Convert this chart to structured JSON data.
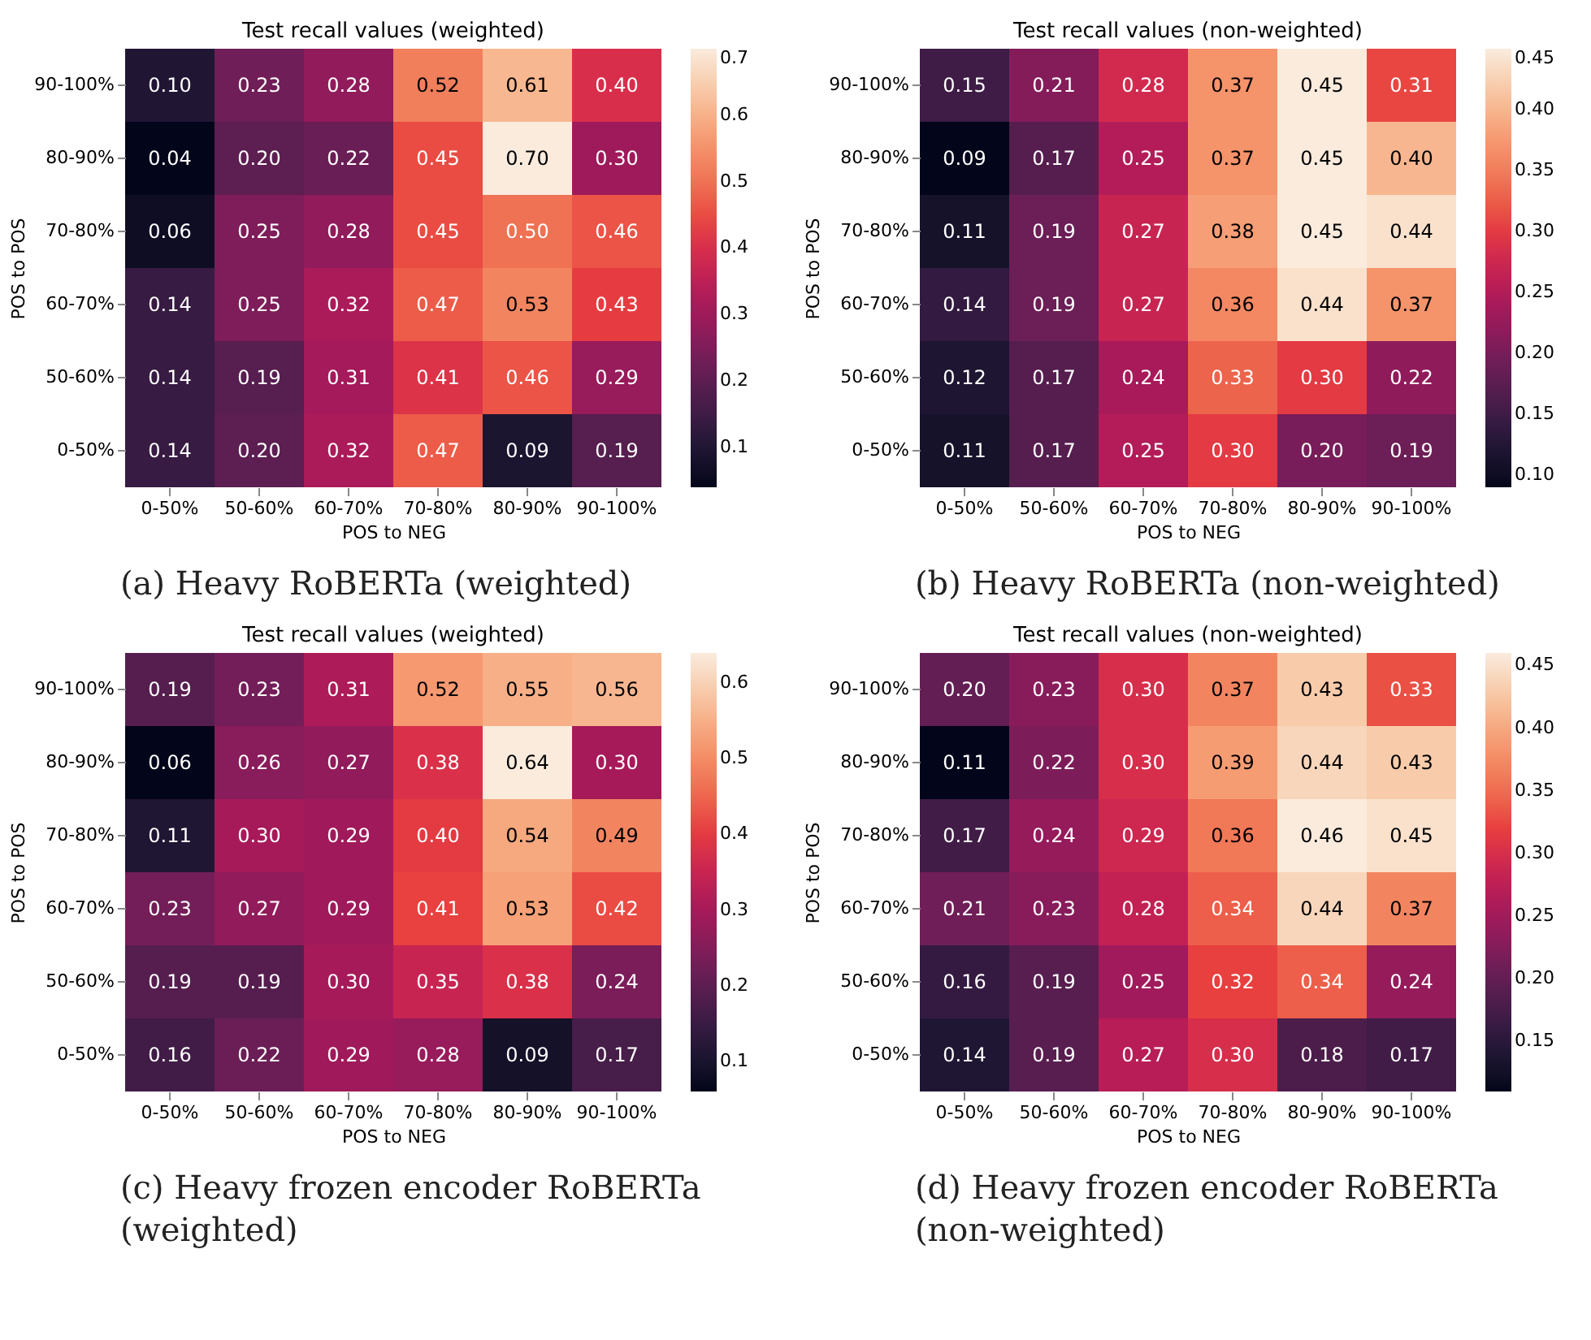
{
  "chart_data": [
    {
      "type": "heatmap",
      "title": "Test recall values (weighted)",
      "xlabel": "POS to NEG",
      "ylabel": "POS to POS",
      "categories": [
        "0-50%",
        "50-60%",
        "60-70%",
        "70-80%",
        "80-90%",
        "90-100%"
      ],
      "y_categories": [
        "90-100%",
        "80-90%",
        "70-80%",
        "60-70%",
        "50-60%",
        "0-50%"
      ],
      "cells": [
        [
          0.1,
          0.23,
          0.28,
          0.52,
          0.61,
          0.4
        ],
        [
          0.04,
          0.2,
          0.22,
          0.45,
          0.7,
          0.3
        ],
        [
          0.06,
          0.25,
          0.28,
          0.45,
          0.5,
          0.46
        ],
        [
          0.14,
          0.25,
          0.32,
          0.47,
          0.53,
          0.43
        ],
        [
          0.14,
          0.19,
          0.31,
          0.41,
          0.46,
          0.29
        ],
        [
          0.14,
          0.2,
          0.32,
          0.47,
          0.09,
          0.19
        ]
      ],
      "cell_labels": [
        [
          "0.10",
          "0.23",
          "0.28",
          "0.52",
          "0.61",
          "0.40"
        ],
        [
          "0.04",
          "0.20",
          "0.22",
          "0.45",
          "0.70",
          "0.30"
        ],
        [
          "0.06",
          "0.25",
          "0.28",
          "0.45",
          "0.50",
          "0.46"
        ],
        [
          "0.14",
          "0.25",
          "0.32",
          "0.47",
          "0.53",
          "0.43"
        ],
        [
          "0.14",
          "0.19",
          "0.31",
          "0.41",
          "0.46",
          "0.29"
        ],
        [
          "0.14",
          "0.20",
          "0.32",
          "0.47",
          "0.09",
          "0.19"
        ]
      ],
      "clim": [
        0.04,
        0.7
      ],
      "cticks": [
        0.1,
        0.2,
        0.3,
        0.4,
        0.5,
        0.6,
        0.7
      ],
      "data_labels": true,
      "annotations": [
        "(a) Heavy RoBERTa (weighted)"
      ]
    },
    {
      "type": "heatmap",
      "title": "Test recall values (non-weighted)",
      "xlabel": "POS to NEG",
      "ylabel": "POS to POS",
      "categories": [
        "0-50%",
        "50-60%",
        "60-70%",
        "70-80%",
        "80-90%",
        "90-100%"
      ],
      "y_categories": [
        "90-100%",
        "80-90%",
        "70-80%",
        "60-70%",
        "50-60%",
        "0-50%"
      ],
      "cells": [
        [
          0.15,
          0.21,
          0.28,
          0.37,
          0.45,
          0.31
        ],
        [
          0.09,
          0.17,
          0.25,
          0.37,
          0.45,
          0.4
        ],
        [
          0.11,
          0.19,
          0.27,
          0.38,
          0.45,
          0.44
        ],
        [
          0.14,
          0.19,
          0.27,
          0.36,
          0.44,
          0.37
        ],
        [
          0.12,
          0.17,
          0.24,
          0.33,
          0.3,
          0.22
        ],
        [
          0.11,
          0.17,
          0.25,
          0.3,
          0.2,
          0.19
        ]
      ],
      "cell_labels": [
        [
          "0.15",
          "0.21",
          "0.28",
          "0.37",
          "0.45",
          "0.31"
        ],
        [
          "0.09",
          "0.17",
          "0.25",
          "0.37",
          "0.45",
          "0.40"
        ],
        [
          "0.11",
          "0.19",
          "0.27",
          "0.38",
          "0.45",
          "0.44"
        ],
        [
          "0.14",
          "0.19",
          "0.27",
          "0.36",
          "0.44",
          "0.37"
        ],
        [
          "0.12",
          "0.17",
          "0.24",
          "0.33",
          "0.30",
          "0.22"
        ],
        [
          "0.11",
          "0.17",
          "0.25",
          "0.30",
          "0.20",
          "0.19"
        ]
      ],
      "clim": [
        0.09,
        0.45
      ],
      "cticks": [
        {
          "value": 0.1,
          "label": "0.10"
        },
        0.15,
        {
          "value": 0.2,
          "label": "0.20"
        },
        0.25,
        {
          "value": 0.3,
          "label": "0.30"
        },
        0.35,
        {
          "value": 0.4,
          "label": "0.40"
        },
        0.45
      ],
      "data_labels": true,
      "annotations": [
        "(b) Heavy RoBERTa (non-weighted)"
      ]
    },
    {
      "type": "heatmap",
      "title": "Test recall values (weighted)",
      "xlabel": "POS to NEG",
      "ylabel": "POS to POS",
      "categories": [
        "0-50%",
        "50-60%",
        "60-70%",
        "70-80%",
        "80-90%",
        "90-100%"
      ],
      "y_categories": [
        "90-100%",
        "80-90%",
        "70-80%",
        "60-70%",
        "50-60%",
        "0-50%"
      ],
      "cells": [
        [
          0.19,
          0.23,
          0.31,
          0.52,
          0.55,
          0.56
        ],
        [
          0.06,
          0.26,
          0.27,
          0.38,
          0.64,
          0.3
        ],
        [
          0.11,
          0.3,
          0.29,
          0.4,
          0.54,
          0.49
        ],
        [
          0.23,
          0.27,
          0.29,
          0.41,
          0.53,
          0.42
        ],
        [
          0.19,
          0.19,
          0.3,
          0.35,
          0.38,
          0.24
        ],
        [
          0.16,
          0.22,
          0.29,
          0.28,
          0.09,
          0.17
        ]
      ],
      "cell_labels": [
        [
          "0.19",
          "0.23",
          "0.31",
          "0.52",
          "0.55",
          "0.56"
        ],
        [
          "0.06",
          "0.26",
          "0.27",
          "0.38",
          "0.64",
          "0.30"
        ],
        [
          "0.11",
          "0.30",
          "0.29",
          "0.40",
          "0.54",
          "0.49"
        ],
        [
          "0.23",
          "0.27",
          "0.29",
          "0.41",
          "0.53",
          "0.42"
        ],
        [
          "0.19",
          "0.19",
          "0.30",
          "0.35",
          "0.38",
          "0.24"
        ],
        [
          "0.16",
          "0.22",
          "0.29",
          "0.28",
          "0.09",
          "0.17"
        ]
      ],
      "clim": [
        0.06,
        0.64
      ],
      "cticks": [
        0.1,
        0.2,
        0.3,
        0.4,
        0.5,
        0.6
      ],
      "data_labels": true,
      "annotations": [
        "(c) Heavy frozen encoder RoBERTa (weighted)"
      ]
    },
    {
      "type": "heatmap",
      "title": "Test recall values (non-weighted)",
      "xlabel": "POS to NEG",
      "ylabel": "POS to POS",
      "categories": [
        "0-50%",
        "50-60%",
        "60-70%",
        "70-80%",
        "80-90%",
        "90-100%"
      ],
      "y_categories": [
        "90-100%",
        "80-90%",
        "70-80%",
        "60-70%",
        "50-60%",
        "0-50%"
      ],
      "cells": [
        [
          0.2,
          0.23,
          0.3,
          0.37,
          0.43,
          0.33
        ],
        [
          0.11,
          0.22,
          0.3,
          0.39,
          0.44,
          0.43
        ],
        [
          0.17,
          0.24,
          0.29,
          0.36,
          0.46,
          0.45
        ],
        [
          0.21,
          0.23,
          0.28,
          0.34,
          0.44,
          0.37
        ],
        [
          0.16,
          0.19,
          0.25,
          0.32,
          0.34,
          0.24
        ],
        [
          0.14,
          0.19,
          0.27,
          0.3,
          0.18,
          0.17
        ]
      ],
      "cell_labels": [
        [
          "0.20",
          "0.23",
          "0.30",
          "0.37",
          "0.43",
          "0.33"
        ],
        [
          "0.11",
          "0.22",
          "0.30",
          "0.39",
          "0.44",
          "0.43"
        ],
        [
          "0.17",
          "0.24",
          "0.29",
          "0.36",
          "0.46",
          "0.45"
        ],
        [
          "0.21",
          "0.23",
          "0.28",
          "0.34",
          "0.44",
          "0.37"
        ],
        [
          "0.16",
          "0.19",
          "0.25",
          "0.32",
          "0.34",
          "0.24"
        ],
        [
          "0.14",
          "0.19",
          "0.27",
          "0.30",
          "0.18",
          "0.17"
        ]
      ],
      "clim": [
        0.11,
        0.46
      ],
      "cticks": [
        0.15,
        {
          "value": 0.2,
          "label": "0.20"
        },
        0.25,
        {
          "value": 0.3,
          "label": "0.30"
        },
        0.35,
        {
          "value": 0.4,
          "label": "0.40"
        },
        0.45
      ],
      "data_labels": true,
      "annotations": [
        "(d) Heavy frozen encoder RoBERTa (non-weighted)"
      ]
    }
  ]
}
